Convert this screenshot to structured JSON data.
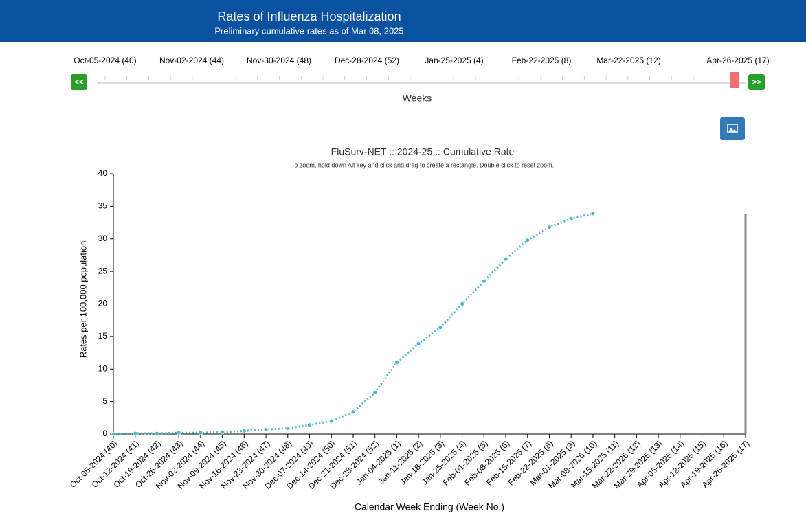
{
  "header": {
    "title": "Rates of Influenza Hospitalization",
    "subtitle": "Preliminary cumulative rates as of Mar 08, 2025"
  },
  "slider": {
    "labels": [
      "Oct-05-2024 (40)",
      "Nov-02-2024 (44)",
      "Nov-30-2024 (48)",
      "Dec-28-2024 (52)",
      "Jan-25-2025 (4)",
      "Feb-22-2025 (8)",
      "Mar-22-2025 (12)",
      "Apr-26-2025 (17)"
    ],
    "prev": "<<",
    "next": ">>",
    "axis_label": "Weeks"
  },
  "chart_data": {
    "type": "line",
    "title": "FluSurv-NET :: 2024-25 :: Cumulative Rate",
    "subtitle": "To zoom, hold down Alt key and click and drag to create a rectangle. Double click to reset zoom.",
    "x_label": "Calendar Week Ending (Week No.)",
    "y_label": "Rates per 100,000 population",
    "categories": [
      "Oct-05-2024 (40)",
      "Oct-12-2024 (41)",
      "Oct-19-2024 (42)",
      "Oct-26-2024 (43)",
      "Nov-02-2024 (44)",
      "Nov-09-2024 (45)",
      "Nov-16-2024 (46)",
      "Nov-23-2024 (47)",
      "Nov-30-2024 (48)",
      "Dec-07-2024 (49)",
      "Dec-14-2024 (50)",
      "Dec-21-2024 (51)",
      "Dec-28-2024 (52)",
      "Jan-04-2025 (1)",
      "Jan-11-2025 (2)",
      "Jan-18-2025 (3)",
      "Jan-25-2025 (4)",
      "Feb-01-2025 (5)",
      "Feb-08-2025 (6)",
      "Feb-15-2025 (7)",
      "Feb-22-2025 (8)",
      "Mar-01-2025 (9)",
      "Mar-08-2025 (10)",
      "Mar-15-2025 (11)",
      "Mar-22-2025 (12)",
      "Mar-29-2025 (13)",
      "Apr-05-2025 (14)",
      "Apr-12-2025 (15)",
      "Apr-19-2025 (16)",
      "Apr-26-2025 (17)"
    ],
    "series": [
      {
        "color": "#4cb8c4",
        "values": [
          0,
          0.1,
          0.1,
          0.2,
          0.2,
          0.3,
          0.5,
          0.7,
          0.9,
          1.4,
          2.0,
          3.4,
          6.4,
          11.0,
          13.9,
          16.4,
          20.0,
          23.5,
          26.9,
          29.8,
          31.8,
          33.1,
          33.9,
          null,
          null,
          null,
          null,
          null,
          null,
          null
        ]
      }
    ],
    "ylim": [
      0,
      40
    ],
    "yticks": [
      0,
      5,
      10,
      15,
      20,
      25,
      30,
      35,
      40
    ]
  }
}
